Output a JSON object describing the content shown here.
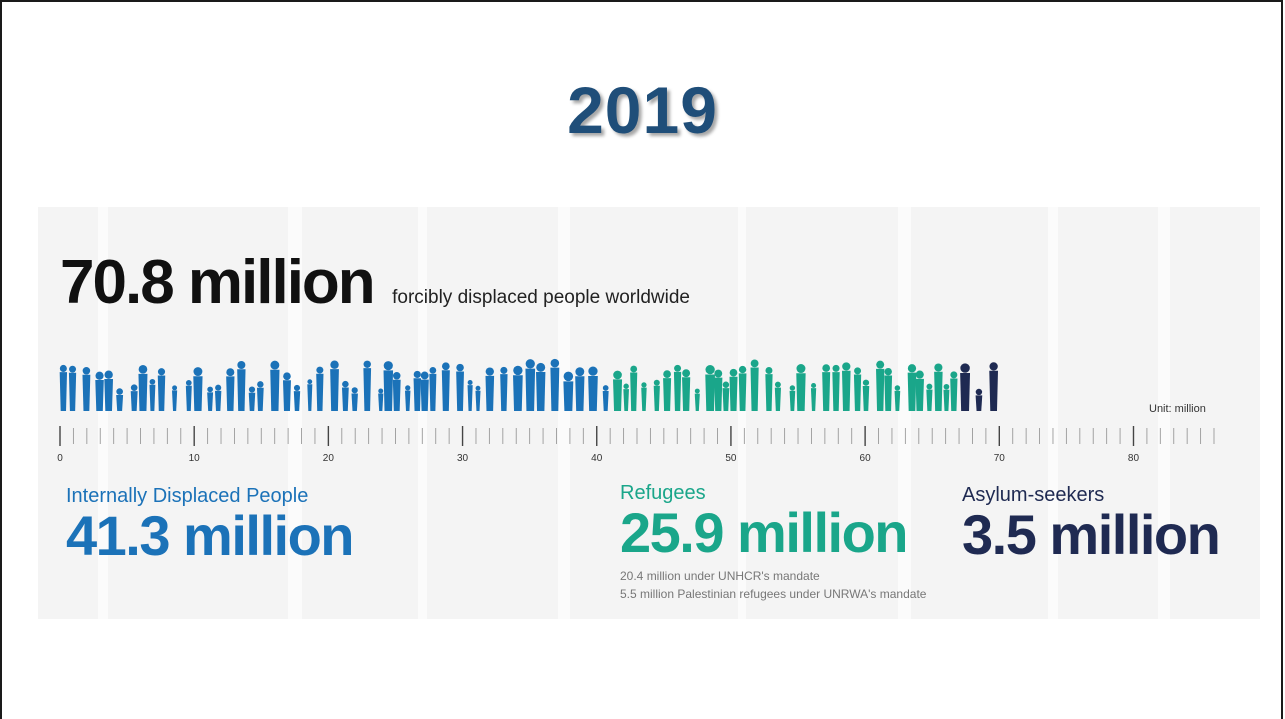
{
  "slide": {
    "title": "2019"
  },
  "headline": {
    "value": "70.8 million",
    "text": "forcibly displaced people worldwide"
  },
  "colors": {
    "title": "#1f4e79",
    "idp": "#1b72b8",
    "refugees": "#1aa68a",
    "asylum": "#1f2a52",
    "axis": "#555555"
  },
  "chart_data": {
    "type": "bar",
    "unit_label": "Unit: million",
    "xlim": [
      0,
      86
    ],
    "ticks": [
      0,
      10,
      20,
      30,
      40,
      50,
      60,
      70,
      80
    ],
    "total": 70.8,
    "segments": [
      {
        "name": "Internally Displaced People",
        "value": 41.3,
        "value_label": "41.3 million",
        "color": "#1b72b8",
        "notes": []
      },
      {
        "name": "Refugees",
        "value": 25.9,
        "value_label": "25.9 million",
        "color": "#1aa68a",
        "notes": [
          "20.4 million under UNHCR's mandate",
          "5.5 million Palestinian refugees under UNRWA's mandate"
        ]
      },
      {
        "name": "Asylum-seekers",
        "value": 3.5,
        "value_label": "3.5 million",
        "color": "#1f2a52",
        "notes": []
      }
    ]
  }
}
